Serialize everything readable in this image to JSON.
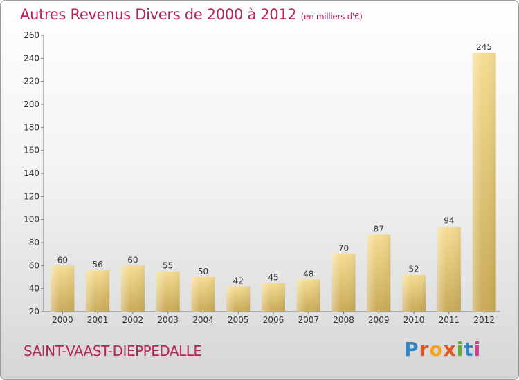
{
  "chart_data": {
    "type": "bar",
    "title": "Autres Revenus Divers de 2000 à 2012",
    "unit_label": "(en milliers d'€)",
    "categories": [
      "2000",
      "2001",
      "2002",
      "2003",
      "2004",
      "2005",
      "2006",
      "2007",
      "2008",
      "2009",
      "2010",
      "2011",
      "2012"
    ],
    "values": [
      60,
      56,
      60,
      55,
      50,
      42,
      45,
      48,
      70,
      87,
      52,
      94,
      245
    ],
    "data_labels": [
      "60",
      "56",
      "60",
      "55",
      "50",
      "42",
      "45",
      "48",
      "70",
      "87",
      "52",
      "94",
      "245"
    ],
    "ylim": [
      20,
      260
    ],
    "yticks": [
      20,
      40,
      60,
      80,
      100,
      120,
      140,
      160,
      180,
      200,
      220,
      240,
      260
    ],
    "grid": false,
    "bar_color": "#e3c76f",
    "xlabel": "",
    "ylabel": ""
  },
  "commune": "SAINT-VAAST-DIEPPEDALLE",
  "logo": {
    "text": "Proxiti",
    "colors": [
      "#2f86c9",
      "#e2571f",
      "#f2a51a",
      "#e2571f",
      "#5fae2e",
      "#2f86c9",
      "#d63a8c"
    ]
  }
}
